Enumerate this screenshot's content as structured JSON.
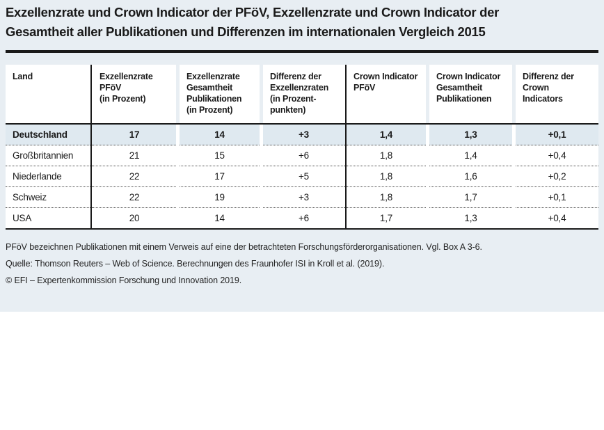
{
  "title": {
    "line1": "Exzellenzrate und Crown Indicator der PFöV, Exzellenzrate und Crown Indicator der",
    "line2": "Gesamtheit aller Publikationen und Differenzen im internationalen Vergleich 2015"
  },
  "table": {
    "headers": [
      "Land",
      "Exzellenzrate\nPFöV\n(in Prozent)",
      "Exzellenzrate\nGesamtheit\nPublikationen\n(in Prozent)",
      "Differenz der\nExzellenzraten\n(in Prozent-\npunkten)",
      "Crown Indicator\nPFöV",
      "Crown Indicator\nGesamtheit\nPublikationen",
      "Differenz der\nCrown\nIndicators"
    ],
    "rows": [
      {
        "land": "Deutschland",
        "values": [
          "17",
          "14",
          "+3",
          "1,4",
          "1,3",
          "+0,1"
        ],
        "highlighted": true
      },
      {
        "land": "Großbritannien",
        "values": [
          "21",
          "15",
          "+6",
          "1,8",
          "1,4",
          "+0,4"
        ],
        "highlighted": false
      },
      {
        "land": "Niederlande",
        "values": [
          "22",
          "17",
          "+5",
          "1,8",
          "1,6",
          "+0,2"
        ],
        "highlighted": false
      },
      {
        "land": "Schweiz",
        "values": [
          "22",
          "19",
          "+3",
          "1,8",
          "1,7",
          "+0,1"
        ],
        "highlighted": false
      },
      {
        "land": "USA",
        "values": [
          "20",
          "14",
          "+6",
          "1,7",
          "1,3",
          "+0,4"
        ],
        "highlighted": false
      }
    ]
  },
  "footnotes": [
    "PFöV bezeichnen Publikationen mit einem Verweis auf eine der betrachteten Forschungsförderorganisationen. Vgl. Box A 3-6.",
    "Quelle: Thomson Reuters – Web of Science. Berechnungen des Fraunhofer ISI in Kroll et al. (2019).",
    "© EFI – Expertenkommission Forschung und Innovation 2019."
  ],
  "colors": {
    "page_background": "#e8eef3",
    "highlight_row": "#dfe9f0",
    "line": "#1a1a1a",
    "text": "#1a1a1a"
  }
}
